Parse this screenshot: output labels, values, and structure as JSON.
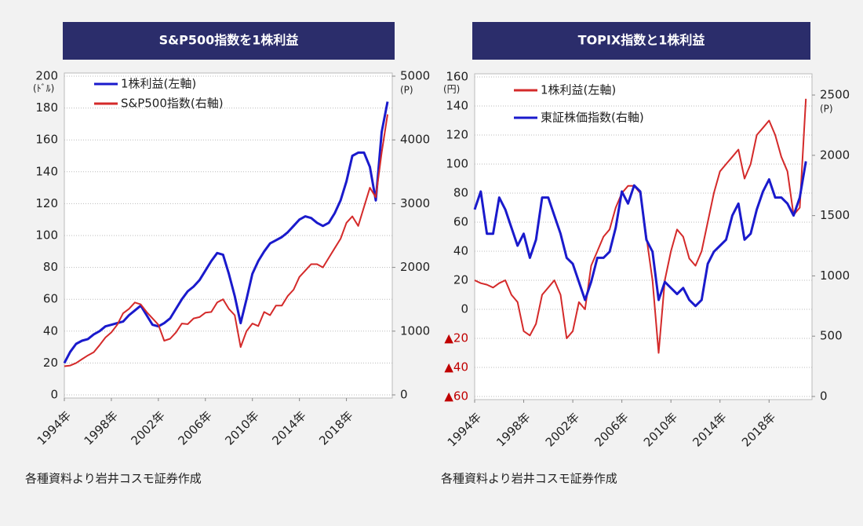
{
  "chart_data": [
    {
      "type": "line",
      "title": "S&P500指数を1株利益",
      "y_unit": "(ﾄﾞﾙ)",
      "y2_unit": "(P)",
      "source": "各種資料より岩井コスモ証券作成",
      "legend": "upper left",
      "grid": true,
      "x": [
        1994,
        1994.5,
        1995,
        1995.5,
        1996,
        1996.5,
        1997,
        1997.5,
        1998,
        1998.5,
        1999,
        1999.5,
        2000,
        2000.5,
        2001,
        2001.5,
        2002,
        2002.5,
        2003,
        2003.5,
        2004,
        2004.5,
        2005,
        2005.5,
        2006,
        2006.5,
        2007,
        2007.5,
        2008,
        2008.5,
        2009,
        2009.5,
        2010,
        2010.5,
        2011,
        2011.5,
        2012,
        2012.5,
        2013,
        2013.5,
        2014,
        2014.5,
        2015,
        2015.5,
        2016,
        2016.5,
        2017,
        2017.5,
        2018,
        2018.5,
        2019,
        2019.5,
        2020,
        2020.5,
        2021,
        2021.5
      ],
      "xlim": [
        1994,
        2021.9
      ],
      "xticks": [
        {
          "value": 1994,
          "label": "1994年"
        },
        {
          "value": 1998,
          "label": "1998年"
        },
        {
          "value": 2002,
          "label": "2002年"
        },
        {
          "value": 2006,
          "label": "2006年"
        },
        {
          "value": 2010,
          "label": "2010年"
        },
        {
          "value": 2014,
          "label": "2014年"
        },
        {
          "value": 2018,
          "label": "2018年"
        }
      ],
      "ylim": [
        0,
        200
      ],
      "yticks": [
        0,
        20,
        40,
        60,
        80,
        100,
        120,
        140,
        160,
        180,
        200
      ],
      "y2lim": [
        0,
        5000
      ],
      "y2ticks": [
        0,
        1000,
        2000,
        3000,
        4000,
        5000
      ],
      "series": [
        {
          "name": "1株利益(左軸)",
          "color": "#1a1acc",
          "axis": "y",
          "values": [
            20,
            27,
            32,
            34,
            35,
            38,
            40,
            43,
            44,
            45,
            46,
            50,
            53,
            56,
            50,
            44,
            43,
            45,
            48,
            54,
            60,
            65,
            68,
            72,
            78,
            84,
            89,
            88,
            76,
            62,
            45,
            60,
            76,
            84,
            90,
            95,
            97,
            99,
            102,
            106,
            110,
            112,
            111,
            108,
            106,
            108,
            114,
            122,
            134,
            150,
            152,
            152,
            143,
            122,
            165,
            184
          ]
        },
        {
          "name": "S&P500指数(右軸)",
          "color": "#d42a2a",
          "axis": "y2",
          "values": [
            450,
            460,
            500,
            560,
            620,
            670,
            780,
            900,
            980,
            1100,
            1280,
            1350,
            1450,
            1420,
            1300,
            1200,
            1100,
            850,
            880,
            980,
            1120,
            1110,
            1200,
            1220,
            1290,
            1300,
            1450,
            1500,
            1350,
            1250,
            750,
            1000,
            1120,
            1080,
            1300,
            1250,
            1400,
            1400,
            1550,
            1650,
            1850,
            1950,
            2050,
            2050,
            2000,
            2150,
            2300,
            2450,
            2700,
            2800,
            2650,
            2950,
            3250,
            3100,
            3800,
            4400
          ]
        }
      ]
    },
    {
      "type": "line",
      "title": "TOPIX指数と1株利益",
      "y_unit": "(円)",
      "y2_unit": "(P)",
      "source": "各種資料より岩井コスモ証券作成",
      "legend": "upper left",
      "grid": true,
      "x": [
        1994,
        1994.5,
        1995,
        1995.5,
        1996,
        1996.5,
        1997,
        1997.5,
        1998,
        1998.5,
        1999,
        1999.5,
        2000,
        2000.5,
        2001,
        2001.5,
        2002,
        2002.5,
        2003,
        2003.5,
        2004,
        2004.5,
        2005,
        2005.5,
        2006,
        2006.5,
        2007,
        2007.5,
        2008,
        2008.5,
        2009,
        2009.5,
        2010,
        2010.5,
        2011,
        2011.5,
        2012,
        2012.5,
        2013,
        2013.5,
        2014,
        2014.5,
        2015,
        2015.5,
        2016,
        2016.5,
        2017,
        2017.5,
        2018,
        2018.5,
        2019,
        2019.5,
        2020,
        2020.5,
        2021
      ],
      "xlim": [
        1994,
        2021.5
      ],
      "xticks": [
        {
          "value": 1994,
          "label": "1994年"
        },
        {
          "value": 1998,
          "label": "1998年"
        },
        {
          "value": 2002,
          "label": "2002年"
        },
        {
          "value": 2006,
          "label": "2006年"
        },
        {
          "value": 2010,
          "label": "2010年"
        },
        {
          "value": 2014,
          "label": "2014年"
        },
        {
          "value": 2018,
          "label": "2018年"
        }
      ],
      "ylim": [
        -60,
        160
      ],
      "yticks": [
        {
          "value": -60,
          "label": "▲60"
        },
        {
          "value": -40,
          "label": "▲40"
        },
        {
          "value": -20,
          "label": "▲20"
        },
        0,
        20,
        40,
        60,
        80,
        100,
        120,
        140,
        160
      ],
      "y2lim": [
        0,
        2650
      ],
      "y2ticks": [
        0,
        500,
        1000,
        1500,
        2000,
        2500
      ],
      "series": [
        {
          "name": "1株利益(左軸)",
          "color": "#d42a2a",
          "axis": "y",
          "values": [
            20,
            18,
            17,
            15,
            18,
            20,
            10,
            5,
            -15,
            -18,
            -10,
            10,
            15,
            20,
            10,
            -20,
            -15,
            5,
            0,
            30,
            40,
            50,
            55,
            70,
            80,
            85,
            85,
            80,
            50,
            20,
            -30,
            20,
            40,
            55,
            50,
            35,
            30,
            40,
            60,
            80,
            95,
            100,
            105,
            110,
            90,
            100,
            120,
            125,
            130,
            120,
            105,
            95,
            65,
            70,
            145
          ]
        },
        {
          "name": "東証株価指数(右軸)",
          "color": "#1a1acc",
          "axis": "y2",
          "values": [
            1550,
            1700,
            1350,
            1350,
            1650,
            1550,
            1400,
            1250,
            1350,
            1150,
            1300,
            1650,
            1650,
            1500,
            1350,
            1150,
            1100,
            950,
            800,
            950,
            1150,
            1150,
            1200,
            1400,
            1700,
            1600,
            1750,
            1700,
            1300,
            1200,
            800,
            950,
            900,
            850,
            900,
            800,
            750,
            800,
            1100,
            1200,
            1250,
            1300,
            1500,
            1600,
            1300,
            1350,
            1550,
            1700,
            1800,
            1650,
            1650,
            1600,
            1500,
            1650,
            1950
          ]
        }
      ]
    }
  ]
}
